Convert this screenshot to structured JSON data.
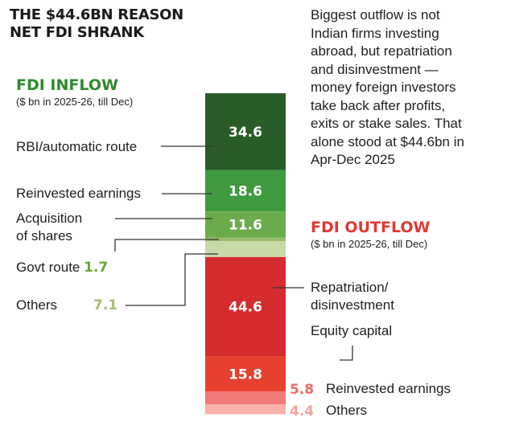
{
  "headline": [
    "THE $44.6BN REASON",
    "NET FDI SHRANK"
  ],
  "note": [
    "Biggest outflow is not",
    "Indian firms investing",
    "abroad, but repatriation",
    "and disinvestment —",
    "money foreign investors",
    "take back after profits,",
    "exits or stake sales. That",
    "alone stood at $44.6bn in",
    "Apr-Dec 2025"
  ],
  "colors": {
    "inflow_title": "#2e8b2e",
    "outflow_title": "#e03a32",
    "govt_value": "#6fa53a",
    "others_in_value": "#a4bd74",
    "reinv_out_value": "#ef6a6a",
    "others_out_value": "#f4a39a"
  },
  "chart_data": {
    "type": "bar",
    "inflow": {
      "title": "FDI INFLOW",
      "subtitle": "($ bn in 2025-26, till Dec)",
      "segments": [
        {
          "label": "RBI/automatic route",
          "value": 34.6,
          "value_text": "34.6",
          "color": "#2a5c2a",
          "shown": "inside"
        },
        {
          "label": "Reinvested earnings",
          "value": 18.6,
          "value_text": "18.6",
          "color": "#3f9a3f",
          "shown": "inside"
        },
        {
          "label": "Acquisition of shares",
          "label_lines": [
            "Acquisition",
            "of shares"
          ],
          "value": 11.6,
          "value_text": "11.6",
          "color": "#6aac4c",
          "shown": "inside"
        },
        {
          "label": "Govt route",
          "value": 1.7,
          "value_text": "1.7",
          "color": "#98bb6e",
          "shown": "outside"
        },
        {
          "label": "Others",
          "value": 7.1,
          "value_text": "7.1",
          "color": "#c8d9a8",
          "shown": "outside"
        }
      ]
    },
    "outflow": {
      "title": "FDI OUTFLOW",
      "subtitle": "($ bn in 2025-26, till Dec)",
      "group_label": "Equity capital",
      "segments": [
        {
          "label": "Repatriation/ disinvestment",
          "label_lines": [
            "Repatriation/",
            "disinvestment"
          ],
          "value": 44.6,
          "value_text": "44.6",
          "color": "#d42c2f",
          "shown": "inside"
        },
        {
          "label": "Equity capital",
          "value": 15.8,
          "value_text": "15.8",
          "color": "#e8402f",
          "shown": "inside"
        },
        {
          "label": "Reinvested earnings",
          "value": 5.8,
          "value_text": "5.8",
          "color": "#f07a77",
          "shown": "outside"
        },
        {
          "label": "Others",
          "value": 4.4,
          "value_text": "4.4",
          "color": "#f7b1a8",
          "shown": "outside"
        }
      ]
    }
  }
}
